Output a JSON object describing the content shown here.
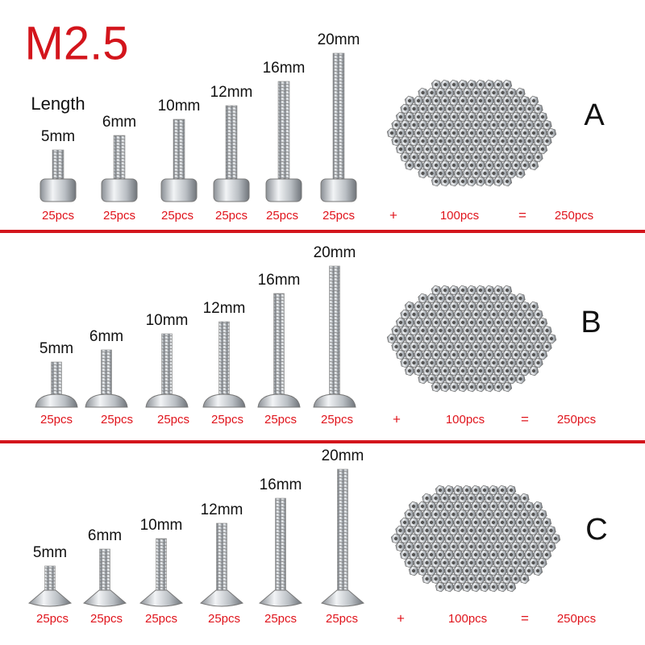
{
  "title": "M2.5",
  "length_label": "Length",
  "sections": [
    {
      "letter": "A",
      "lengths": [
        "5mm",
        "6mm",
        "10mm",
        "12mm",
        "16mm",
        "20mm"
      ],
      "counts": [
        "25pcs",
        "25pcs",
        "25pcs",
        "25pcs",
        "25pcs",
        "25pcs"
      ],
      "plus": "+",
      "nut_count": "100pcs",
      "equals": "=",
      "total": "250pcs"
    },
    {
      "letter": "B",
      "lengths": [
        "5mm",
        "6mm",
        "10mm",
        "12mm",
        "16mm",
        "20mm"
      ],
      "counts": [
        "25pcs",
        "25pcs",
        "25pcs",
        "25pcs",
        "25pcs",
        "25pcs"
      ],
      "plus": "+",
      "nut_count": "100pcs",
      "equals": "=",
      "total": "250pcs"
    },
    {
      "letter": "C",
      "lengths": [
        "5mm",
        "6mm",
        "10mm",
        "12mm",
        "16mm",
        "20mm"
      ],
      "counts": [
        "25pcs",
        "25pcs",
        "25pcs",
        "25pcs",
        "25pcs",
        "25pcs"
      ],
      "plus": "+",
      "nut_count": "100pcs",
      "equals": "=",
      "total": "250pcs"
    }
  ]
}
